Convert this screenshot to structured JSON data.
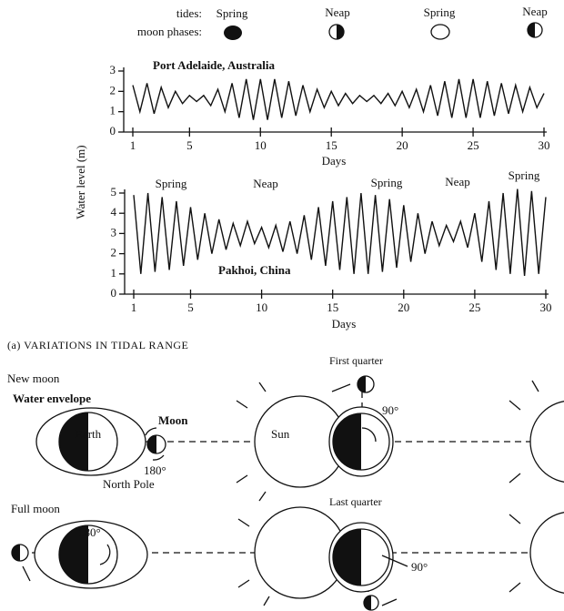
{
  "header": {
    "tides_label": "tides:",
    "phases_label": "moon phases:",
    "tides": [
      "Spring",
      "Neap",
      "Spring",
      "Neap"
    ]
  },
  "chart_data": [
    {
      "type": "line",
      "title": "Port Adelaide, Australia",
      "y_label": "Water level (m)",
      "x_label": "Days",
      "color": "#111111",
      "x": [
        1,
        1.5,
        2,
        2.5,
        3,
        3.5,
        4,
        4.5,
        5,
        5.5,
        6,
        6.5,
        7,
        7.5,
        8,
        8.5,
        9,
        9.5,
        10,
        10.5,
        11,
        11.5,
        12,
        12.5,
        13,
        13.5,
        14,
        14.5,
        15,
        15.5,
        16,
        16.5,
        17,
        17.5,
        18,
        18.5,
        19,
        19.5,
        20,
        20.5,
        21,
        21.5,
        22,
        22.5,
        23,
        23.5,
        24,
        24.5,
        25,
        25.5,
        26,
        26.5,
        27,
        27.5,
        28,
        28.5,
        29,
        29.5,
        30
      ],
      "values": [
        2.3,
        1.0,
        2.4,
        0.9,
        2.2,
        1.2,
        2.0,
        1.4,
        1.8,
        1.5,
        1.8,
        1.3,
        2.1,
        1.0,
        2.4,
        0.7,
        2.6,
        0.6,
        2.6,
        0.6,
        2.6,
        0.7,
        2.5,
        0.8,
        2.3,
        1.0,
        2.1,
        1.2,
        2.0,
        1.3,
        1.9,
        1.4,
        1.8,
        1.5,
        1.8,
        1.4,
        1.9,
        1.3,
        2.0,
        1.2,
        2.1,
        1.0,
        2.3,
        0.8,
        2.5,
        0.7,
        2.6,
        0.7,
        2.6,
        0.7,
        2.5,
        0.8,
        2.4,
        0.9,
        2.3,
        1.0,
        2.2,
        1.2,
        1.9
      ],
      "xlim": [
        1,
        30
      ],
      "xticks": [
        1,
        5,
        10,
        15,
        20,
        25,
        30
      ],
      "ylim": [
        0,
        3
      ],
      "yticks": [
        0,
        1,
        2,
        3
      ]
    },
    {
      "type": "line",
      "title": "Pakhoi, China",
      "x_label": "Days",
      "color": "#111111",
      "annotations": [
        "Spring",
        "Neap",
        "Spring",
        "Neap",
        "Spring"
      ],
      "x": [
        1,
        1.5,
        2,
        2.5,
        3,
        3.5,
        4,
        4.5,
        5,
        5.5,
        6,
        6.5,
        7,
        7.5,
        8,
        8.5,
        9,
        9.5,
        10,
        10.5,
        11,
        11.5,
        12,
        12.5,
        13,
        13.5,
        14,
        14.5,
        15,
        15.5,
        16,
        16.5,
        17,
        17.5,
        18,
        18.5,
        19,
        19.5,
        20,
        20.5,
        21,
        21.5,
        22,
        22.5,
        23,
        23.5,
        24,
        24.5,
        25,
        25.5,
        26,
        26.5,
        27,
        27.5,
        28,
        28.5,
        29,
        29.5,
        30
      ],
      "values": [
        4.9,
        1.0,
        5.0,
        1.1,
        4.8,
        1.2,
        4.6,
        1.4,
        4.3,
        1.7,
        4.0,
        2.0,
        3.7,
        2.2,
        3.5,
        2.4,
        3.6,
        2.5,
        3.3,
        2.3,
        3.4,
        2.1,
        3.6,
        2.0,
        3.9,
        1.7,
        4.3,
        1.4,
        4.6,
        1.2,
        4.8,
        1.0,
        5.0,
        1.0,
        4.9,
        1.1,
        4.7,
        1.3,
        4.4,
        1.6,
        4.0,
        2.0,
        3.6,
        2.4,
        3.4,
        2.6,
        3.6,
        2.3,
        4.0,
        1.6,
        4.6,
        1.2,
        5.0,
        1.0,
        5.2,
        0.9,
        5.1,
        1.0,
        4.8
      ],
      "xlim": [
        1,
        30
      ],
      "xticks": [
        1,
        5,
        10,
        15,
        20,
        25,
        30
      ],
      "ylim": [
        0,
        5
      ],
      "yticks": [
        0,
        1,
        2,
        3,
        4,
        5
      ]
    }
  ],
  "diagram": {
    "caption": "(a) VARIATIONS IN TIDAL RANGE",
    "new_moon": "New moon",
    "water_envelope": "Water envelope",
    "earth": "Earth",
    "moon": "Moon",
    "sun": "Sun",
    "angle_new": "180°",
    "north_pole": "North Pole",
    "full_moon": "Full moon",
    "angle_full": "180°",
    "first_quarter": "First quarter",
    "angle_first": "90°",
    "last_quarter": "Last quarter",
    "angle_last": "90°"
  }
}
